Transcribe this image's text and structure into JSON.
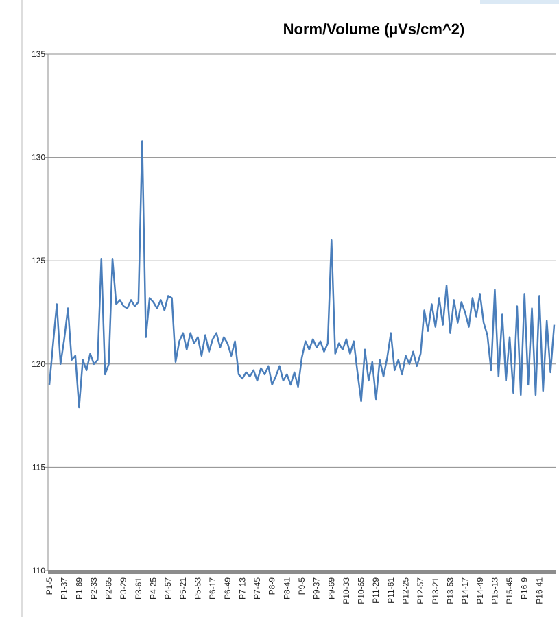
{
  "chart_data": {
    "type": "line",
    "title": "Norm/Volume (µVs/cm^2)",
    "categories": [
      "P1-5",
      null,
      null,
      null,
      "P1-37",
      null,
      null,
      null,
      "P1-69",
      null,
      null,
      null,
      "P2-33",
      null,
      null,
      null,
      "P2-65",
      null,
      null,
      null,
      "P3-29",
      null,
      null,
      null,
      "P3-61",
      null,
      null,
      null,
      "P4-25",
      null,
      null,
      null,
      "P4-57",
      null,
      null,
      null,
      "P5-21",
      null,
      null,
      null,
      "P5-53",
      null,
      null,
      null,
      "P6-17",
      null,
      null,
      null,
      "P6-49",
      null,
      null,
      null,
      "P7-13",
      null,
      null,
      null,
      "P7-45",
      null,
      null,
      null,
      "P8-9",
      null,
      null,
      null,
      "P8-41",
      null,
      null,
      null,
      "P9-5",
      null,
      null,
      null,
      "P9-37",
      null,
      null,
      null,
      "P9-69",
      null,
      null,
      null,
      "P10-33",
      null,
      null,
      null,
      "P10-65",
      null,
      null,
      null,
      "P11-29",
      null,
      null,
      null,
      "P11-61",
      null,
      null,
      null,
      "P12-25",
      null,
      null,
      null,
      "P12-57",
      null,
      null,
      null,
      "P13-21",
      null,
      null,
      null,
      "P13-53",
      null,
      null,
      null,
      "P14-17",
      null,
      null,
      null,
      "P14-49",
      null,
      null,
      null,
      "P15-13",
      null,
      null,
      null,
      "P15-45",
      null,
      null,
      null,
      "P16-9",
      null,
      null,
      null,
      "P16-41",
      null,
      null,
      null,
      null
    ],
    "values": [
      119,
      121,
      122.9,
      120,
      121.2,
      122.7,
      120.2,
      120.4,
      117.9,
      120.2,
      119.7,
      120.5,
      120,
      120.2,
      125.1,
      119.5,
      120,
      125.1,
      122.9,
      123.1,
      122.8,
      122.7,
      123.1,
      122.8,
      123,
      130.8,
      121.3,
      123.2,
      123,
      122.7,
      123.1,
      122.6,
      123.3,
      123.2,
      120.1,
      121.1,
      121.5,
      120.7,
      121.5,
      121,
      121.3,
      120.4,
      121.4,
      120.6,
      121.2,
      121.5,
      120.8,
      121.3,
      121,
      120.4,
      121.1,
      119.5,
      119.3,
      119.6,
      119.4,
      119.7,
      119.2,
      119.8,
      119.5,
      119.9,
      119,
      119.4,
      119.9,
      119.2,
      119.5,
      119,
      119.6,
      118.9,
      120.3,
      121.1,
      120.7,
      121.2,
      120.8,
      121.1,
      120.6,
      121,
      126,
      120.5,
      121,
      120.7,
      121.2,
      120.5,
      121.1,
      119.6,
      118.2,
      120.7,
      119.2,
      120.1,
      118.3,
      120.2,
      119.4,
      120.3,
      121.5,
      119.7,
      120.2,
      119.5,
      120.4,
      120,
      120.6,
      119.9,
      120.5,
      122.6,
      121.6,
      122.9,
      121.8,
      123.2,
      121.9,
      123.8,
      121.5,
      123.1,
      122,
      123,
      122.5,
      121.8,
      123.2,
      122.3,
      123.4,
      122,
      121.4,
      119.7,
      123.6,
      119.4,
      122.4,
      119.2,
      121.3,
      118.6,
      122.8,
      118.5,
      123.4,
      119,
      122.7,
      118.5,
      123.3,
      118.7,
      122.1,
      119.6,
      121.9
    ],
    "color": "#4a7ebb",
    "ylim": [
      110,
      135
    ],
    "yticks": [
      110,
      115,
      120,
      125,
      130,
      135
    ],
    "grid": true
  }
}
